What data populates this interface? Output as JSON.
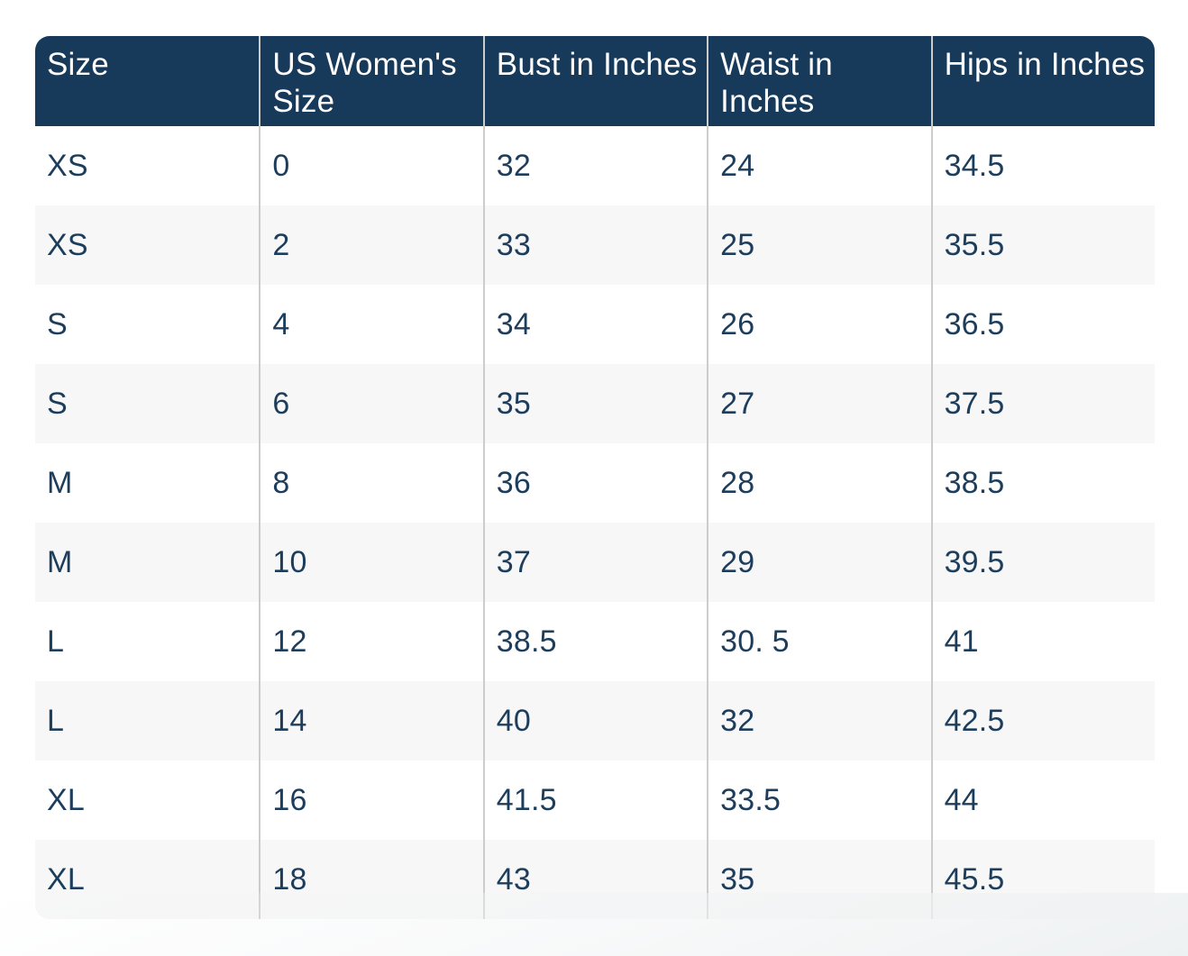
{
  "chart_data": {
    "type": "table",
    "title": "",
    "columns": [
      "Size",
      "US Women's Size",
      "Bust in Inches",
      "Waist in Inches",
      "Hips in Inches"
    ],
    "rows": [
      [
        "XS",
        "0",
        "32",
        "24",
        "34.5"
      ],
      [
        "XS",
        "2",
        "33",
        "25",
        "35.5"
      ],
      [
        "S",
        "4",
        "34",
        "26",
        "36.5"
      ],
      [
        "S",
        "6",
        "35",
        "27",
        "37.5"
      ],
      [
        "M",
        "8",
        "36",
        "28",
        "38.5"
      ],
      [
        "M",
        "10",
        "37",
        "29",
        "39.5"
      ],
      [
        "L",
        "12",
        "38.5",
        "30. 5",
        "41"
      ],
      [
        "L",
        "14",
        "40",
        "32",
        "42.5"
      ],
      [
        "XL",
        "16",
        "41.5",
        "33.5",
        "44"
      ],
      [
        "XL",
        "18",
        "43",
        "35",
        "45.5"
      ]
    ],
    "layout": {
      "header_position": "top",
      "striped_rows": true,
      "column_count": 5,
      "row_count": 10,
      "grid_vertical_dividers": true,
      "rounded_corners": true
    }
  },
  "colors": {
    "header_bg": "#17395A",
    "header_text": "#FFFFFF",
    "body_text": "#1D3D5C",
    "row_bg": "#FFFFFF",
    "row_alt_bg": "#F7F7F7",
    "divider": "#CCCCCC",
    "page_bg": "#FFFFFF",
    "page_fade": "#EEF1F2"
  }
}
